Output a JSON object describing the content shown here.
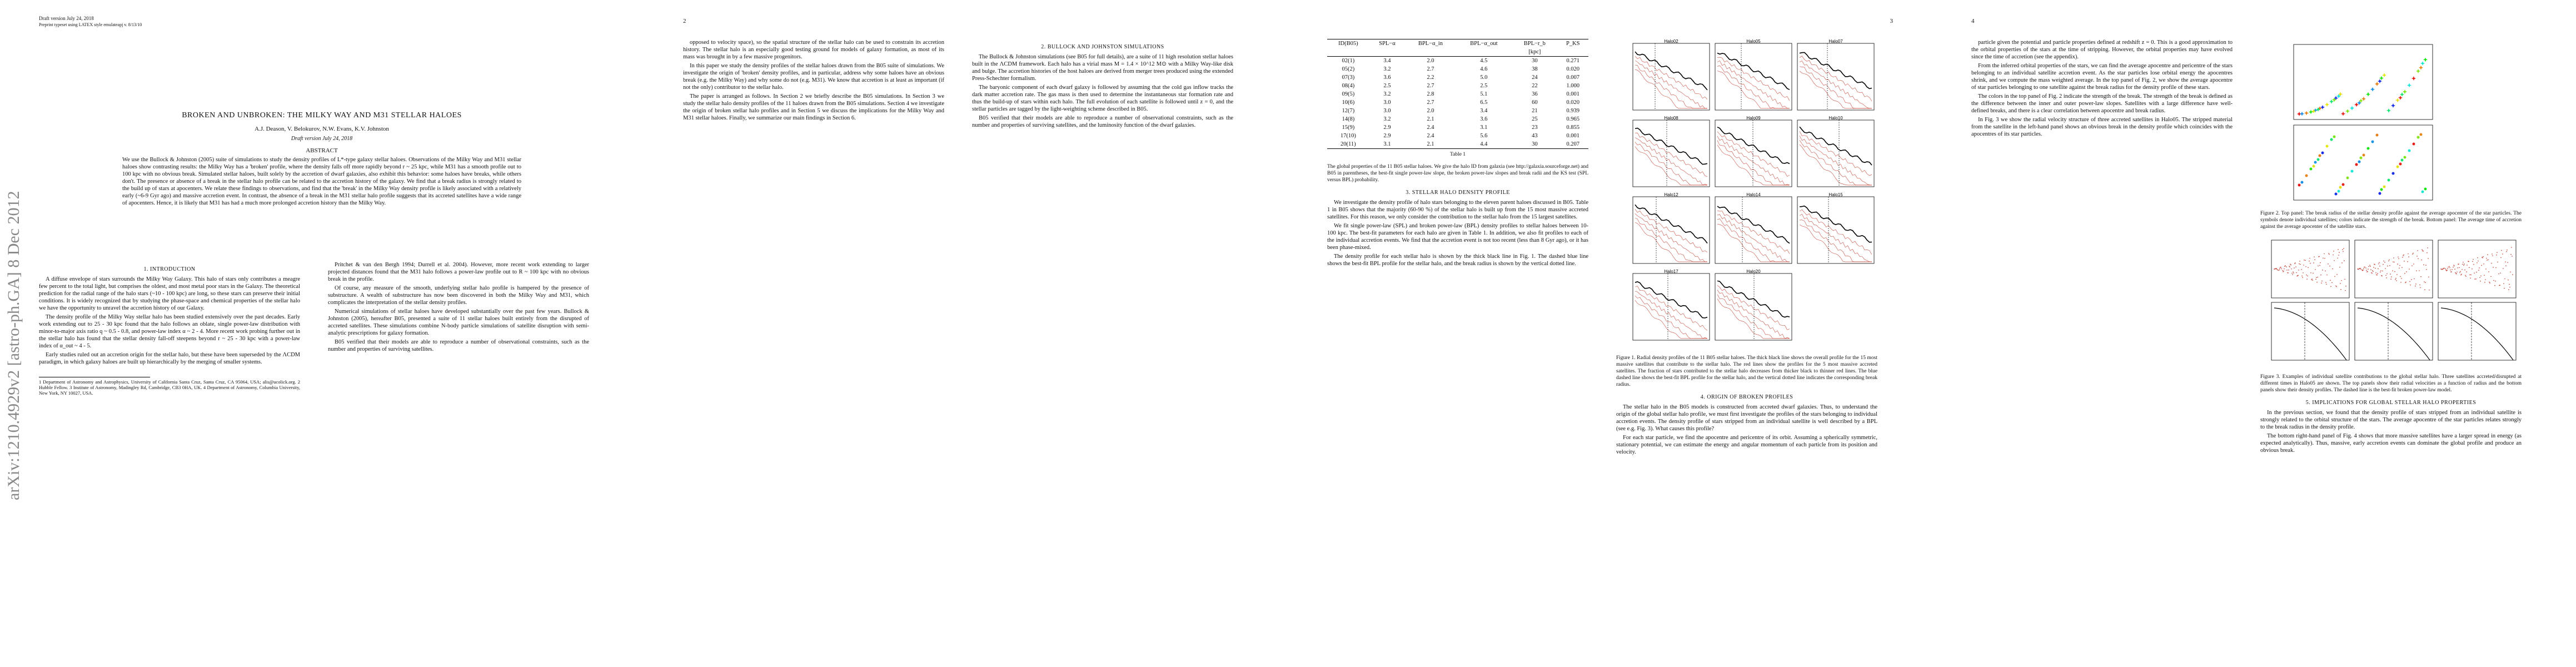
{
  "page1": {
    "running_head": "Draft version July 24, 2018",
    "preprint": "Preprint typeset using LATEX style emulateapj v. 8/13/10",
    "arxiv": "arXiv:1210.4929v2 [astro-ph.GA] 8 Dec 2012",
    "title": "BROKEN AND UNBROKEN: THE MILKY WAY AND M31 STELLAR HALOES",
    "authors": "A.J. Deason, V. Belokurov, N.W. Evans, K.V. Johnston",
    "draft": "Draft version July 24, 2018",
    "abstract_heading": "ABSTRACT",
    "abstract": "We use the Bullock & Johnston (2005) suite of simulations to study the density profiles of L*-type galaxy stellar haloes. Observations of the Milky Way and M31 stellar haloes show contrasting results: the Milky Way has a 'broken' profile, where the density falls off more rapidly beyond r ~ 25 kpc, while M31 has a smooth profile out to 100 kpc with no obvious break. Simulated stellar haloes, built solely by the accretion of dwarf galaxies, also exhibit this behavior: some haloes have breaks, while others don't. The presence or absence of a break in the stellar halo profile can be related to the accretion history of the galaxy. We find that a break radius is strongly related to the build up of stars at apocenters. We relate these findings to observations, and find that the 'break' in the Milky Way density profile is likely associated with a relatively early (~6-9 Gyr ago) and massive accretion event. In contrast, the absence of a break in the M31 stellar halo profile suggests that its accreted satellites have a wide range of apocenters. Hence, it is likely that M31 has had a much more prolonged accretion history than the Milky Way.",
    "intro_heading": "1. INTRODUCTION",
    "col1": [
      "A diffuse envelope of stars surrounds the Milky Way Galaxy. This halo of stars only contributes a meagre few percent to the total light, but comprises the oldest, and most metal poor stars in the Galaxy. The theoretical prediction for the radial range of the halo stars (~10 - 100 kpc) are long, so these stars can preserve their initial conditions. It is widely recognized that by studying the phase-space and chemical properties of the stellar halo we have the opportunity to unravel the accretion history of our Galaxy.",
      "The density profile of the Milky Way stellar halo has been studied extensively over the past decades. Early work extending out to 25 - 30 kpc found that the halo follows an oblate, single power-law distribution with minor-to-major axis ratio q ~ 0.5 - 0.8, and power-law index α ~ 2 - 4. More recent work probing further out in the stellar halo has found that the stellar density fall-off steepens beyond r ~ 25 - 30 kpc with a power-law index of α_out ~ 4 - 5.",
      "Early studies ruled out an accretion origin for the stellar halo, but these have been superseded by the ΛCDM paradigm, in which galaxy haloes are built up hierarchically by the merging of smaller systems."
    ],
    "col2": [
      "Pritchet & van den Bergh 1994; Durrell et al. 2004). However, more recent work extending to larger projected distances found that the M31 halo follows a power-law profile out to R ~ 100 kpc with no obvious break in the profile.",
      "Of course, any measure of the smooth, underlying stellar halo profile is hampered by the presence of substructure. A wealth of substructure has now been discovered in both the Milky Way and M31, which complicates the interpretation of the stellar density profiles.",
      "Numerical simulations of stellar haloes have developed substantially over the past few years. Bullock & Johnston (2005), hereafter B05, presented a suite of 11 stellar haloes built entirely from the disrupted of accreted satellites. These simulations combine N-body particle simulations of satellite disruption with semi-analytic prescriptions for galaxy formation.",
      "B05 verified that their models are able to reproduce a number of observational constraints, such as the number and properties of surviving satellites."
    ],
    "footnotes": "1 Department of Astronomy and Astrophysics, University of California Santa Cruz, Santa Cruz, CA 95064, USA; alis@ucolick.org. 2 Hubble Fellow. 3 Institute of Astronomy, Madingley Rd, Cambridge, CB3 0HA, UK. 4 Department of Astronomy, Columbia University, New York, NY 10027, USA."
  },
  "page2": {
    "number": "2",
    "col1": [
      "opposed to velocity space), so the spatial structure of the stellar halo can be used to constrain its accretion history. The stellar halo is an especially good testing ground for models of galaxy formation, as most of its mass was brought in by a few massive progenitors.",
      "In this paper we study the density profiles of the stellar haloes drawn from the B05 suite of simulations. We investigate the origin of 'broken' density profiles, and in particular, address why some haloes have an obvious break (e.g. the Milky Way) and why some do not (e.g. M31). We know that accretion is at least as important (if not the only) contributor to the stellar halo.",
      "The paper is arranged as follows. In Section 2 we briefly describe the B05 simulations. In Section 3 we study the stellar halo density profiles of the 11 haloes drawn from the B05 simulations. Section 4 we investigate the origin of broken stellar halo profiles and in Section 5 we discuss the implications for the Milky Way and M31 stellar haloes. Finally, we summarize our main findings in Section 6."
    ],
    "section2_heading": "2. BULLOCK AND JOHNSTON SIMULATIONS",
    "col2": [
      "The Bullock & Johnston simulations (see B05 for full details), are a suite of 11 high resolution stellar haloes built in the ΛCDM framework. Each halo has a virial mass M = 1.4 × 10^12 M⊙ with a Milky Way-like disk and bulge. The accretion histories of the host haloes are derived from merger trees produced using the extended Press-Schechter formalism.",
      "The baryonic component of each dwarf galaxy is followed by assuming that the cold gas inflow tracks the dark matter accretion rate. The gas mass is then used to determine the instantaneous star formation rate and thus the build-up of stars within each halo. The full evolution of each satellite is followed until z = 0, and the stellar particles are tagged by the light-weighting scheme described in B05.",
      "B05 verified that their models are able to reproduce a number of observational constraints, such as the number and properties of surviving satellites, and the luminosity function of the dwarf galaxies."
    ]
  },
  "page3": {
    "number": "3",
    "table": {
      "header": [
        "ID(B05)",
        "SPL−α",
        "BPL−α_in",
        "BPL−α_out",
        "BPL−r_b",
        "P_KS"
      ],
      "units": [
        "",
        "",
        "",
        "",
        "[kpc]",
        ""
      ],
      "rows": [
        [
          "02(1)",
          "3.4",
          "2.0",
          "4.5",
          "30",
          "0.271"
        ],
        [
          "05(2)",
          "3.2",
          "2.7",
          "4.6",
          "38",
          "0.020"
        ],
        [
          "07(3)",
          "3.6",
          "2.2",
          "5.0",
          "24",
          "0.007"
        ],
        [
          "08(4)",
          "2.5",
          "2.7",
          "2.5",
          "22",
          "1.000"
        ],
        [
          "09(5)",
          "3.2",
          "2.8",
          "5.1",
          "36",
          "0.001"
        ],
        [
          "10(6)",
          "3.0",
          "2.7",
          "6.5",
          "60",
          "0.020"
        ],
        [
          "12(7)",
          "3.0",
          "2.0",
          "3.4",
          "21",
          "0.939"
        ],
        [
          "14(8)",
          "3.2",
          "2.1",
          "3.6",
          "25",
          "0.965"
        ],
        [
          "15(9)",
          "2.9",
          "2.4",
          "3.1",
          "23",
          "0.855"
        ],
        [
          "17(10)",
          "2.9",
          "2.4",
          "5.6",
          "43",
          "0.001"
        ],
        [
          "20(11)",
          "3.1",
          "2.1",
          "4.4",
          "30",
          "0.207"
        ]
      ],
      "label": "Table 1",
      "caption": "The global properties of the 11 B05 stellar haloes. We give the halo ID from galaxia (see http://galaxia.sourceforge.net) and B05 in parentheses, the best-fit single power-law slope, the broken power-law slopes and break radii and the KS test (SPL versus BPL) probability."
    },
    "section3_heading": "3. STELLAR HALO DENSITY PROFILE",
    "col1": [
      "We investigate the density profile of halo stars belonging to the eleven parent haloes discussed in B05. Table 1 in B05 shows that the majority (60-90 %) of the stellar halo is built up from the 15 most massive accreted satellites. For this reason, we only consider the contribution to the stellar halo from the 15 largest satellites.",
      "We fit single power-law (SPL) and broken power-law (BPL) density profiles to stellar haloes between 10-100 kpc. The best-fit parameters for each halo are given in Table 1. In addition, we also fit profiles to each of the individual accretion events. We find that the accretion event is not too recent (less than 8 Gyr ago), or it has been phase-mixed.",
      "The density profile for each stellar halo is shown by the thick black line in Fig. 1. The dashed blue line shows the best-fit BPL profile for the stellar halo, and the break radius is shown by the vertical dotted line."
    ],
    "figure_panels": [
      "Halo02",
      "Halo05",
      "Halo07",
      "Halo08",
      "Halo09",
      "Halo10",
      "Halo12",
      "Halo14",
      "Halo15",
      "Halo17",
      "Halo20"
    ],
    "figure_caption": "Figure 1. Radial density profiles of the 11 B05 stellar haloes. The thick black line shows the overall profile for the 15 most massive satellites that contribute to the stellar halo. The red lines show the profiles for the 5 most massive accreted satellites. The fraction of stars contributed to the stellar halo decreases from thicker black to thinner red lines. The blue dashed line shows the best-fit BPL profile for the stellar halo, and the vertical dotted line indicates the corresponding break radius.",
    "section4_heading": "4. ORIGIN OF BROKEN PROFILES",
    "col2": [
      "The stellar halo in the B05 models is constructed from accreted dwarf galaxies. Thus, to understand the origin of the global stellar halo profile, we must first investigate the profiles of the stars belonging to individual accretion events. The density profile of stars stripped from an individual satellite is well described by a BPL (see e.g. Fig. 3). What causes this profile?",
      "For each star particle, we find the apocentre and pericentre of its orbit. Assuming a spherically symmetric, stationary potential, we can estimate the energy and angular momentum of each particle from its position and velocity."
    ]
  },
  "page4": {
    "number": "4",
    "col1": [
      "particle given the potential and particle properties defined at redshift z = 0. This is a good approximation to the orbital properties of the stars at the time of stripping. However, the orbital properties may have evolved since the time of accretion (see the appendix).",
      "From the inferred orbital properties of the stars, we can find the average apocentre and pericentre of the stars belonging to an individual satellite accretion event. As the star particles lose orbital energy the apocentres shrink, and we compute the mass weighted average. In the top panel of Fig. 2, we show the average apocentre of star particles belonging to one satellite against the break radius for the density profile of these stars.",
      "The colors in the top panel of Fig. 2 indicate the strength of the break. The strength of the break is defined as the difference between the inner and outer power-law slopes. Satellites with a large difference have well-defined breaks, and there is a clear correlation between apocentre and break radius.",
      "In Fig. 3 we show the radial velocity structure of three accreted satellites in Halo05. The stripped material from the satellite in the left-hand panel shows an obvious break in the density profile which coincides with the apocentres of its star particles."
    ],
    "fig2_caption": "Figure 2. Top panel: The break radius of the stellar density profile against the average apocenter of the star particles. The symbols denote individual satellites; colors indicate the strength of the break. Bottom panel: The average time of accretion against the average apocenter of the satellite stars.",
    "fig3_caption": "Figure 3. Examples of individual satellite contributions to the global stellar halo. Three satellites accreted/disrupted at different times in Halo05 are shown. The top panels show their radial velocities as a function of radius and the bottom panels show their density profiles. The dashed line is the best-fit broken power-law model.",
    "section5_heading": "5. IMPLICATIONS FOR GLOBAL STELLAR HALO PROPERTIES",
    "col2": [
      "In the previous section, we found that the density profile of stars stripped from an individual satellite is strongly related to the orbital structure of the stars. The average apocentre of the star particles relates strongly to the break radius in the density profile.",
      "The bottom right-hand panel of Fig. 4 shows that more massive satellites have a larger spread in energy (as expected analytically). Thus, massive, early accretion events can dominate the global profile and produce an obvious break."
    ]
  }
}
